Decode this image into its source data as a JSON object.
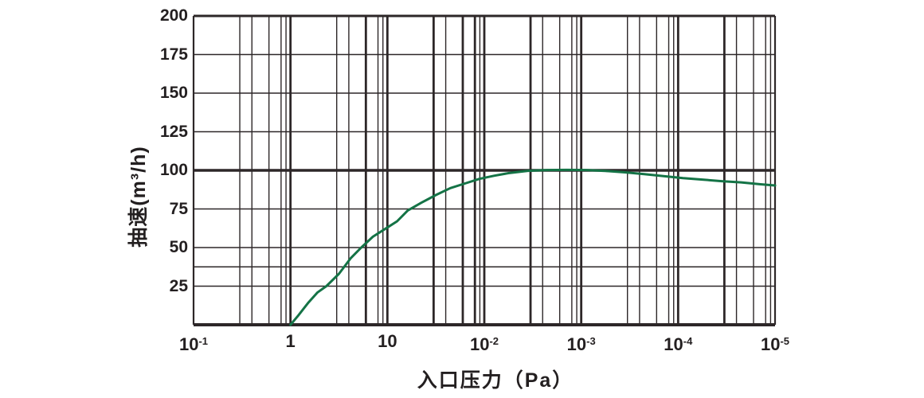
{
  "chart_data": {
    "type": "line",
    "title": "",
    "xlabel": "入口压力（Pa）",
    "ylabel": "抽速(m³/h)",
    "legend": "none",
    "grid": "on",
    "x_axis": {
      "scale": "log-decades (6 decades, labels as printed left to right)",
      "tick_labels": [
        {
          "base": "10",
          "exp": "-1"
        },
        {
          "base": "1",
          "exp": ""
        },
        {
          "base": "10",
          "exp": ""
        },
        {
          "base": "10",
          "exp": "-2"
        },
        {
          "base": "10",
          "exp": "-3"
        },
        {
          "base": "10",
          "exp": "-4"
        },
        {
          "base": "10",
          "exp": "-5"
        }
      ],
      "tick_display": [
        "10⁻¹",
        "1",
        "10",
        "10⁻²",
        "10⁻³",
        "10⁻⁴",
        "10⁻⁵"
      ],
      "minor_rel_positions": [
        0.477,
        0.602,
        0.778,
        0.903,
        0.954
      ],
      "bold_minor_lines": [
        [
          1,
          2
        ],
        [
          2,
          0
        ],
        [
          2,
          2
        ],
        [
          2,
          3
        ],
        [
          3,
          0
        ],
        [
          5,
          0
        ]
      ]
    },
    "y_axis": {
      "min": 0,
      "max": 200,
      "tick_values": [
        200,
        175,
        150,
        125,
        100,
        75,
        50,
        25
      ],
      "tick_display": [
        "200",
        "175",
        "150",
        "125",
        "100",
        "75",
        "50",
        "25"
      ],
      "extra_gridline_values": [
        37.5
      ],
      "emphasized_gridline": 100
    },
    "series": [
      {
        "name": "抽速",
        "color": "#147346",
        "points_decade_speed": [
          [
            1.0,
            0
          ],
          [
            1.08,
            6
          ],
          [
            1.18,
            14
          ],
          [
            1.28,
            21
          ],
          [
            1.37,
            25
          ],
          [
            1.5,
            33
          ],
          [
            1.62,
            43
          ],
          [
            1.73,
            50
          ],
          [
            1.85,
            57
          ],
          [
            2.0,
            63
          ],
          [
            2.1,
            67
          ],
          [
            2.21,
            74
          ],
          [
            2.35,
            79
          ],
          [
            2.5,
            84
          ],
          [
            2.65,
            88.5
          ],
          [
            2.8,
            91.5
          ],
          [
            2.95,
            94.5
          ],
          [
            3.1,
            96.5
          ],
          [
            3.25,
            98.2
          ],
          [
            3.45,
            99.7
          ],
          [
            3.65,
            100.2
          ],
          [
            3.85,
            100.3
          ],
          [
            4.05,
            100.2
          ],
          [
            4.25,
            99.6
          ],
          [
            4.45,
            98.7
          ],
          [
            4.65,
            97.6
          ],
          [
            4.85,
            96.3
          ],
          [
            5.05,
            95.0
          ],
          [
            5.25,
            94.0
          ],
          [
            5.45,
            93.0
          ],
          [
            5.65,
            92.2
          ],
          [
            5.85,
            91.0
          ],
          [
            6.0,
            90.2
          ]
        ]
      }
    ],
    "key_points_speed_at_ticks": {
      "1": 0,
      "10": 63,
      "10⁻²": 95.5,
      "10⁻³": 100,
      "10⁻⁴": 95,
      "10⁻⁵": 90
    },
    "colors": {
      "curve": "#147346",
      "grid": "#2d2728",
      "text": "#231f20",
      "background": "#ffffff"
    }
  }
}
